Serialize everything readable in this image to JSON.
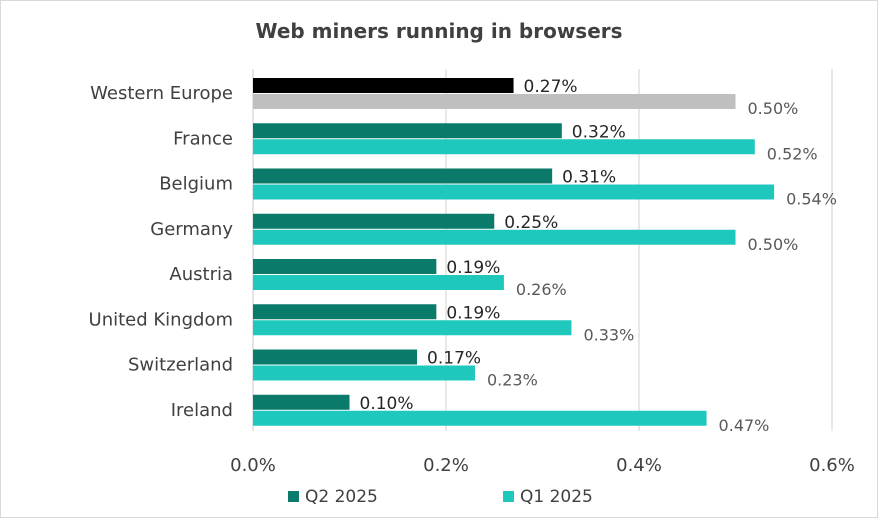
{
  "chart_data": {
    "type": "bar",
    "orientation": "horizontal",
    "title": "Web miners running in browsers",
    "categories": [
      "Western Europe",
      "France",
      "Belgium",
      "Germany",
      "Austria",
      "United Kingdom",
      "Switzerland",
      "Ireland"
    ],
    "series": [
      {
        "name": "Q2 2025",
        "values": [
          0.27,
          0.32,
          0.31,
          0.25,
          0.19,
          0.19,
          0.17,
          0.1
        ],
        "labels": [
          "0.27%",
          "0.32%",
          "0.31%",
          "0.25%",
          "0.19%",
          "0.19%",
          "0.17%",
          "0.10%"
        ],
        "color": "#0a7a6a",
        "first_color": "#000000"
      },
      {
        "name": "Q1 2025",
        "values": [
          0.5,
          0.52,
          0.54,
          0.5,
          0.26,
          0.33,
          0.23,
          0.47
        ],
        "labels": [
          "0.50%",
          "0.52%",
          "0.54%",
          "0.50%",
          "0.26%",
          "0.33%",
          "0.23%",
          "0.47%"
        ],
        "color": "#1ec8bc",
        "first_color": "#bfbfbf"
      }
    ],
    "xlim": [
      0,
      0.6
    ],
    "xticks": [
      0,
      0.2,
      0.4,
      0.6
    ],
    "xtick_labels": [
      "0.0%",
      "0.2%",
      "0.4%",
      "0.6%"
    ],
    "grid": true,
    "legend": "bottom"
  }
}
